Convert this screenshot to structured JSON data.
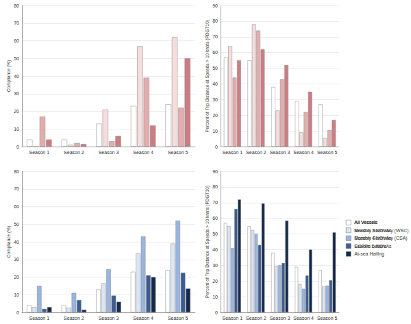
{
  "chart_data": [
    {
      "type": "bar",
      "y_label": "Compliance (%)",
      "categories": [
        "Season 1",
        "Season 2",
        "Season 3",
        "Season 4",
        "Season 5"
      ],
      "series": [
        {
          "color": "#ffffff",
          "values": [
            4,
            4,
            13,
            23,
            24
          ]
        },
        {
          "color": "#f7dcdc",
          "values": [
            0,
            1,
            21,
            57,
            62
          ]
        },
        {
          "color": "#e3adae",
          "values": [
            17,
            2,
            3,
            39,
            22
          ]
        },
        {
          "color": "#cc7d82",
          "values": [
            4,
            1.5,
            6,
            12,
            50
          ]
        }
      ],
      "ylim": [
        0,
        80
      ],
      "yticks": [
        0,
        10,
        20,
        30,
        40,
        50,
        60,
        70,
        80
      ],
      "grid": true
    },
    {
      "type": "bar",
      "y_label": "Percent of Trip Distance at Speeds > 10 knots (PDGT10)",
      "categories": [
        "Season 1",
        "Season 2",
        "Season 3",
        "Season 4",
        "Season 5"
      ],
      "series": [
        {
          "name": "All Vessels",
          "color": "#ffffff",
          "values": [
            57,
            55,
            38,
            29,
            27
          ]
        },
        {
          "name": "Season 3 NOVAs",
          "color": "#f7dcdc",
          "values": [
            64,
            78,
            23,
            9,
            5.5
          ]
        },
        {
          "name": "Season 4 NOVAs",
          "color": "#e3adae",
          "values": [
            44,
            74,
            43,
            22,
            10.5
          ]
        },
        {
          "name": "Season 5 NOVAs",
          "color": "#cc7d82",
          "values": [
            55,
            62,
            52,
            35,
            17
          ]
        }
      ],
      "ylim": [
        0,
        90
      ],
      "yticks": [
        0,
        10,
        20,
        30,
        40,
        50,
        60,
        70,
        80,
        90
      ],
      "grid": true,
      "legend": "right"
    },
    {
      "type": "bar",
      "y_label": "Compliance (%)",
      "categories": [
        "Season 1",
        "Season 2",
        "Season 3",
        "Season 4",
        "Season 5"
      ],
      "series": [
        {
          "color": "#ffffff",
          "values": [
            4,
            4,
            13,
            23,
            24
          ]
        },
        {
          "color": "#dbe5f5",
          "values": [
            3,
            2.5,
            16.5,
            33.5,
            39
          ]
        },
        {
          "color": "#9ab5e0",
          "values": [
            15,
            11,
            24.5,
            43,
            52
          ]
        },
        {
          "color": "#3c5d92",
          "values": [
            2,
            7,
            9.5,
            21,
            22.5
          ]
        },
        {
          "color": "#15294a",
          "values": [
            3,
            1.5,
            6,
            20,
            13.5
          ]
        }
      ],
      "ylim": [
        0,
        80
      ],
      "yticks": [
        0,
        10,
        20,
        30,
        40,
        50,
        60,
        70,
        80
      ],
      "grid": true
    },
    {
      "type": "bar",
      "y_label": "Percent of Trip Distance at Speeds > 10 knots (PDGT10)",
      "categories": [
        "Season 1",
        "Season 2",
        "Season 3",
        "Season 4",
        "Season 5"
      ],
      "series": [
        {
          "name": "All Vessels",
          "color": "#ffffff",
          "values": [
            57,
            55,
            38,
            29,
            27
          ]
        },
        {
          "name": "Monthly Summary (WSC)",
          "color": "#dbe5f5",
          "values": [
            55,
            52.5,
            29.5,
            18,
            16.5
          ]
        },
        {
          "name": "Monthly Summary (CSA)",
          "color": "#9ab5e0",
          "values": [
            41,
            50,
            30,
            15,
            17
          ]
        },
        {
          "name": "COPPs Letters",
          "color": "#3c5d92",
          "values": [
            66,
            43,
            31.5,
            23.5,
            20.5
          ]
        },
        {
          "name": "At-sea Hailing",
          "color": "#15294a",
          "values": [
            72,
            69.5,
            58.5,
            40,
            51
          ]
        }
      ],
      "ylim": [
        0,
        90
      ],
      "yticks": [
        0,
        10,
        20,
        30,
        40,
        50,
        60,
        70,
        80,
        90
      ],
      "grid": true,
      "legend": "right"
    }
  ]
}
